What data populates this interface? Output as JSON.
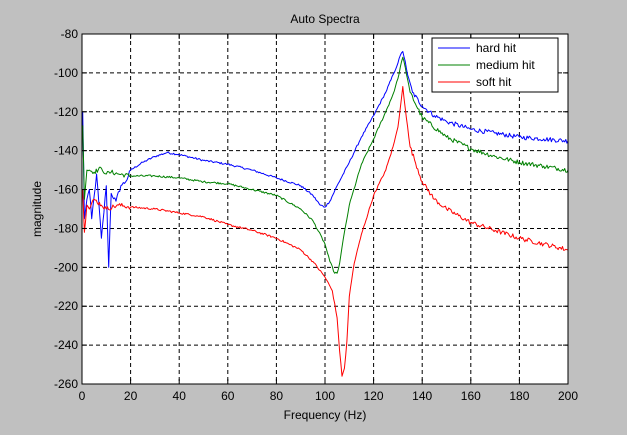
{
  "chart_data": {
    "type": "line",
    "title": "Auto Spectra",
    "xlabel": "Frequency (Hz)",
    "ylabel": "magnitude",
    "xlim": [
      0,
      200
    ],
    "ylim": [
      -260,
      -80
    ],
    "x_ticks": [
      0,
      20,
      40,
      60,
      80,
      100,
      120,
      140,
      160,
      180,
      200
    ],
    "y_ticks": [
      -80,
      -100,
      -120,
      -140,
      -160,
      -180,
      -200,
      -220,
      -240,
      -260
    ],
    "grid": true,
    "grid_style": "dashed",
    "legend_position": "top-right",
    "series": [
      {
        "name": "hard hit",
        "color": "#0000ff",
        "x": [
          0.3,
          1,
          2,
          3,
          4,
          6,
          8,
          10,
          11,
          12,
          14,
          16,
          18,
          20,
          25,
          30,
          35,
          40,
          50,
          60,
          70,
          80,
          90,
          95,
          98,
          100,
          102,
          105,
          110,
          115,
          120,
          125,
          128,
          130,
          131,
          132,
          133,
          134,
          136,
          140,
          145,
          150,
          160,
          170,
          180,
          190,
          200
        ],
        "y": [
          -120,
          -175,
          -165,
          -160,
          -175,
          -152,
          -185,
          -158,
          -200,
          -162,
          -166,
          -158,
          -156,
          -150,
          -146,
          -143,
          -141,
          -142,
          -145,
          -147,
          -150,
          -154,
          -158,
          -163,
          -168,
          -169,
          -166,
          -158,
          -146,
          -133,
          -122,
          -110,
          -101,
          -95,
          -91,
          -89,
          -94,
          -101,
          -110,
          -117,
          -122,
          -125,
          -129,
          -131,
          -133,
          -134,
          -135
        ]
      },
      {
        "name": "medium hit",
        "color": "#008000",
        "x": [
          0.3,
          1,
          2,
          3,
          5,
          8,
          10,
          12,
          15,
          20,
          30,
          40,
          50,
          60,
          70,
          80,
          90,
          95,
          100,
          102,
          104,
          105,
          106,
          108,
          110,
          115,
          120,
          125,
          128,
          130,
          131,
          132,
          133,
          135,
          140,
          150,
          160,
          170,
          180,
          190,
          200
        ],
        "y": [
          -127,
          -165,
          -150,
          -150,
          -151,
          -149,
          -152,
          -151,
          -152,
          -153,
          -153,
          -154,
          -156,
          -157,
          -160,
          -163,
          -170,
          -176,
          -188,
          -197,
          -203,
          -203,
          -198,
          -182,
          -168,
          -147,
          -134,
          -120,
          -111,
          -103,
          -97,
          -92,
          -97,
          -110,
          -123,
          -133,
          -139,
          -143,
          -146,
          -148,
          -150
        ]
      },
      {
        "name": "soft hit",
        "color": "#ff0000",
        "x": [
          0.3,
          1,
          2,
          3,
          5,
          8,
          10,
          15,
          20,
          30,
          40,
          50,
          60,
          70,
          80,
          90,
          95,
          100,
          103,
          105,
          106,
          107,
          108,
          109,
          110,
          112,
          115,
          120,
          125,
          128,
          130,
          131,
          132,
          133,
          135,
          140,
          145,
          150,
          160,
          170,
          180,
          190,
          200
        ],
        "y": [
          -160,
          -182,
          -168,
          -170,
          -165,
          -168,
          -170,
          -168,
          -169,
          -170,
          -172,
          -174,
          -178,
          -181,
          -185,
          -191,
          -197,
          -205,
          -212,
          -226,
          -243,
          -256,
          -252,
          -238,
          -215,
          -198,
          -183,
          -163,
          -150,
          -138,
          -128,
          -118,
          -107,
          -118,
          -138,
          -156,
          -165,
          -170,
          -177,
          -181,
          -185,
          -188,
          -191
        ]
      }
    ]
  }
}
